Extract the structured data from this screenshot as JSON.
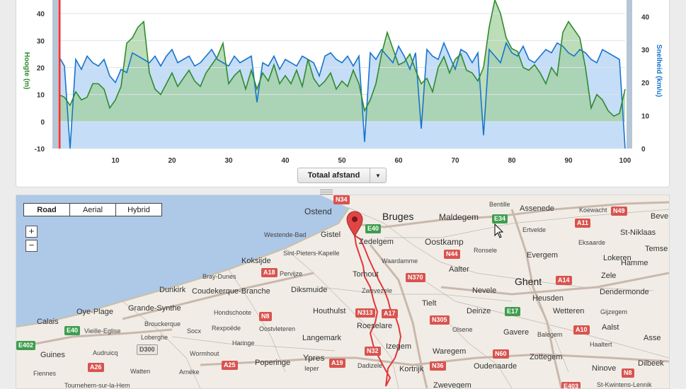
{
  "chart": {
    "y_left_title": "Hoogte (m)",
    "y_right_title": "Snelheid (km/u)",
    "y_left_ticks": [
      "40",
      "30",
      "20",
      "10",
      "0",
      "-10"
    ],
    "y_right_ticks": [
      "40",
      "30",
      "20",
      "10",
      "0"
    ],
    "x_ticks": [
      "10",
      "20",
      "30",
      "40",
      "50",
      "60",
      "70",
      "80",
      "90",
      "100"
    ],
    "x_selector_label": "Totaal afstand",
    "colors": {
      "elevation": "#2e8b2e",
      "speed": "#1874cd",
      "speed_fill": "#c5ddf6",
      "elev_fill": "#9fcf9a",
      "marker": "#e83a3a"
    }
  },
  "chart_data": {
    "type": "area",
    "xlabel": "Totaal afstand",
    "ylabel": "Hoogte (m)",
    "ylabel_right": "Snelheid (km/u)",
    "xlim": [
      0,
      100
    ],
    "ylim": [
      -10,
      45
    ],
    "ylim_right": [
      0,
      45
    ],
    "series": [
      {
        "name": "Hoogte (m)",
        "axis": "left",
        "x": [
          0,
          1,
          2,
          3,
          4,
          5,
          6,
          7,
          8,
          9,
          10,
          11,
          12,
          13,
          14,
          15,
          16,
          17,
          18,
          19,
          20,
          21,
          22,
          23,
          24,
          25,
          26,
          27,
          28,
          29,
          30,
          31,
          32,
          33,
          34,
          35,
          36,
          37,
          38,
          39,
          40,
          41,
          42,
          43,
          44,
          45,
          46,
          47,
          48,
          49,
          50,
          51,
          52,
          53,
          54,
          55,
          56,
          57,
          58,
          59,
          60,
          61,
          62,
          63,
          64,
          65,
          66,
          67,
          68,
          69,
          70,
          71,
          72,
          73,
          74,
          75,
          76,
          77,
          78,
          79,
          80,
          81,
          82,
          83,
          84,
          85,
          86,
          87,
          88,
          89,
          90,
          91,
          92,
          93,
          94,
          95,
          96,
          97,
          98,
          99,
          100
        ],
        "values": [
          10,
          9,
          6,
          11,
          8,
          9,
          14,
          14,
          12,
          5,
          8,
          13,
          29,
          31,
          35,
          37,
          18,
          12,
          10,
          14,
          18,
          13,
          16,
          19,
          15,
          13,
          18,
          21,
          24,
          29,
          14,
          17,
          19,
          12,
          19,
          12,
          18,
          15,
          21,
          14,
          17,
          14,
          19,
          13,
          23,
          16,
          13,
          15,
          18,
          12,
          15,
          13,
          19,
          14,
          4,
          8,
          14,
          25,
          33,
          27,
          21,
          22,
          25,
          19,
          14,
          16,
          11,
          20,
          24,
          18,
          23,
          25,
          19,
          18,
          15,
          20,
          35,
          45,
          40,
          31,
          27,
          26,
          20,
          19,
          21,
          18,
          14,
          20,
          17,
          33,
          37,
          34,
          31,
          20,
          5,
          10,
          8,
          4,
          2,
          3,
          12
        ]
      },
      {
        "name": "Snelheid (km/u)",
        "axis": "right",
        "x": [
          0,
          1,
          2,
          3,
          4,
          5,
          6,
          7,
          8,
          9,
          10,
          11,
          12,
          13,
          14,
          15,
          16,
          17,
          18,
          19,
          20,
          21,
          22,
          23,
          24,
          25,
          26,
          27,
          28,
          29,
          30,
          31,
          32,
          33,
          34,
          35,
          36,
          37,
          38,
          39,
          40,
          41,
          42,
          43,
          44,
          45,
          46,
          47,
          48,
          49,
          50,
          51,
          52,
          53,
          54,
          55,
          56,
          57,
          58,
          59,
          60,
          61,
          62,
          63,
          64,
          65,
          66,
          67,
          68,
          69,
          70,
          71,
          72,
          73,
          74,
          75,
          76,
          77,
          78,
          79,
          80,
          81,
          82,
          83,
          84,
          85,
          86,
          87,
          88,
          89,
          90,
          91,
          92,
          93,
          94,
          95,
          96,
          97,
          98,
          99,
          100
        ],
        "values": [
          28,
          25,
          0,
          27,
          24,
          28,
          26,
          25,
          27,
          22,
          20,
          24,
          23,
          29,
          28,
          27,
          26,
          28,
          25,
          28,
          30,
          26,
          27,
          28,
          25,
          26,
          28,
          30,
          27,
          26,
          25,
          28,
          26,
          27,
          28,
          14,
          26,
          25,
          28,
          24,
          27,
          26,
          25,
          28,
          27,
          26,
          22,
          28,
          29,
          27,
          26,
          28,
          25,
          28,
          2,
          29,
          27,
          30,
          28,
          26,
          31,
          28,
          24,
          29,
          6,
          30,
          28,
          27,
          32,
          28,
          24,
          30,
          29,
          26,
          29,
          4,
          30,
          28,
          26,
          32,
          29,
          28,
          31,
          27,
          26,
          28,
          30,
          29,
          32,
          31,
          29,
          28,
          30,
          29,
          27,
          26,
          30,
          29,
          28,
          27,
          0
        ]
      }
    ]
  },
  "map": {
    "type_buttons": [
      "Road",
      "Aerial",
      "Hybrid"
    ],
    "zoom_in": "+",
    "zoom_out": "−",
    "cities_big": [
      "Bruges",
      "Ghent"
    ],
    "cities": [
      "Ostend",
      "Maldegem",
      "Bentille",
      "Assenede",
      "Koewacht",
      "Beve",
      "Westende-Bad",
      "Gistel",
      "Zedelgem",
      "Oostkamp",
      "Ertvelde",
      "Eksaarde",
      "St-Niklaas",
      "Sint-Pieters-Kapelle",
      "Waardamme",
      "Ronsele",
      "Evergem",
      "Lokeren",
      "Temse",
      "Koksijde",
      "Torhout",
      "Aalter",
      "Hamme",
      "Bray-Dunes",
      "Pervijze",
      "Zele",
      "Dunkirk",
      "Coudekerque-Branche",
      "Diksmuide",
      "Zwevezele",
      "Nevele",
      "Dendermonde",
      "Heusden",
      "Oye-Plage",
      "Grande-Synthe",
      "Hondschoote",
      "Houthulst",
      "Tielt",
      "Deinze",
      "Wetteren",
      "Gijzegem",
      "Calais",
      "Brouckerque",
      "Rexpoëde",
      "Oostvleteren",
      "Roeselare",
      "Olsene",
      "Gavere",
      "Balegem",
      "Aalst",
      "Vieille-Eglise",
      "Loberghe",
      "Socx",
      "Haringe",
      "Langemark",
      "Izegem",
      "Asse",
      "Haaltert",
      "Guines",
      "Audruicq",
      "Wormhout",
      "Poperinge",
      "Ypres",
      "Waregem",
      "Zottegem",
      "Dilbeek",
      "Fiennes",
      "Watten",
      "Arnèke",
      "Ieper",
      "Dadizele",
      "Kortrijk",
      "Oudenaarde",
      "Ninove",
      "Tournehem-sur-la-Hem",
      "Zwevegem",
      "St-Kwintens-Lennik"
    ],
    "roads": [
      "N34",
      "E40",
      "A11",
      "N49",
      "N44",
      "E34",
      "N370",
      "A18",
      "A14",
      "N8",
      "E17",
      "A17",
      "N313",
      "N305",
      "E40",
      "A10",
      "E402",
      "D300",
      "N60",
      "N32",
      "A25",
      "A19",
      "A26",
      "N36",
      "N8",
      "E403"
    ]
  }
}
